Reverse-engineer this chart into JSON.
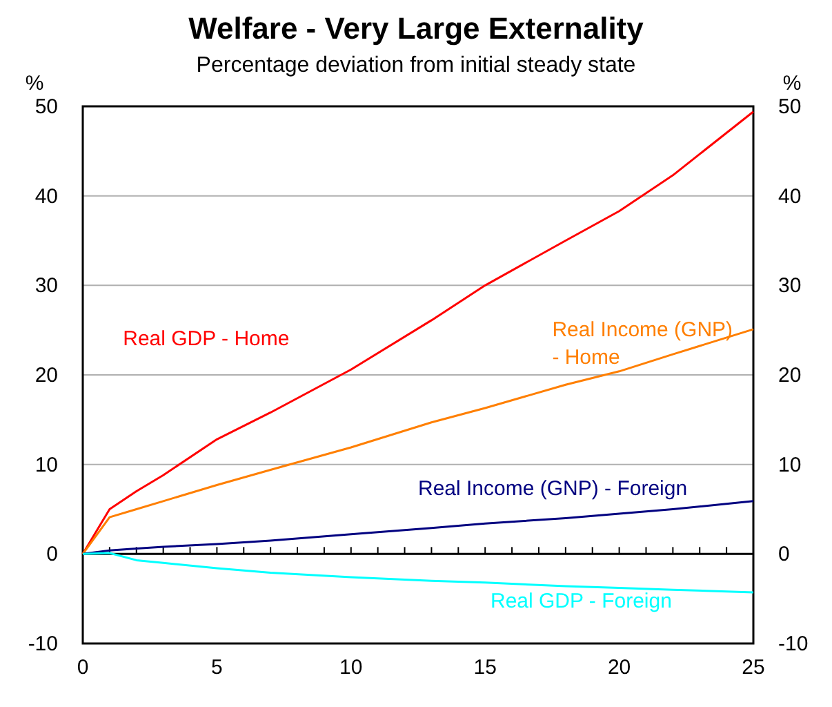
{
  "chart_data": {
    "type": "line",
    "title": "Welfare - Very Large Externality",
    "subtitle": "Percentage deviation from initial steady state",
    "ylabel": "%",
    "y2label": "%",
    "x": [
      0,
      1,
      2,
      3,
      5,
      7,
      10,
      13,
      15,
      18,
      20,
      22,
      25
    ],
    "xlim": [
      0,
      25
    ],
    "xticks": [
      0,
      {
        "value": 1,
        "label": null
      },
      {
        "value": 2,
        "label": null
      },
      {
        "value": 3,
        "label": null
      },
      {
        "value": 4,
        "label": null
      },
      5,
      {
        "value": 6,
        "label": null
      },
      {
        "value": 7,
        "label": null
      },
      {
        "value": 8,
        "label": null
      },
      {
        "value": 9,
        "label": null
      },
      10,
      {
        "value": 11,
        "label": null
      },
      {
        "value": 12,
        "label": null
      },
      {
        "value": 13,
        "label": null
      },
      {
        "value": 14,
        "label": null
      },
      15,
      {
        "value": 16,
        "label": null
      },
      {
        "value": 17,
        "label": null
      },
      {
        "value": 18,
        "label": null
      },
      {
        "value": 19,
        "label": null
      },
      20,
      {
        "value": 21,
        "label": null
      },
      {
        "value": 22,
        "label": null
      },
      {
        "value": 23,
        "label": null
      },
      {
        "value": 24,
        "label": null
      },
      25
    ],
    "ylim": [
      -10,
      50
    ],
    "yticks": [
      -10,
      0,
      10,
      20,
      30,
      40,
      50
    ],
    "y2lim": [
      -10,
      50
    ],
    "y2ticks": [
      -10,
      0,
      10,
      20,
      30,
      40,
      50
    ],
    "grid": "y",
    "legend": false,
    "marker": "none",
    "line_style": "solid",
    "series": [
      {
        "name": "Real GDP - Home",
        "color": "#ff0000",
        "values": [
          0,
          5.0,
          7.0,
          8.8,
          12.8,
          15.8,
          20.6,
          26.1,
          30.0,
          35.0,
          38.3,
          42.3,
          49.4
        ]
      },
      {
        "name": "Real Income (GNP) - Home",
        "color": "#ff7f00",
        "values": [
          0,
          4.1,
          5.0,
          5.9,
          7.7,
          9.4,
          11.9,
          14.7,
          16.3,
          18.9,
          20.4,
          22.3,
          25.1
        ]
      },
      {
        "name": "Real Income (GNP) - Foreign",
        "color": "#000080",
        "values": [
          0,
          0.4,
          0.6,
          0.8,
          1.1,
          1.5,
          2.2,
          2.9,
          3.4,
          4.0,
          4.5,
          5.0,
          5.9
        ]
      },
      {
        "name": "Real GDP - Foreign",
        "color": "#00ffff",
        "values": [
          0,
          0.1,
          -0.7,
          -1.0,
          -1.6,
          -2.1,
          -2.6,
          -3.0,
          -3.2,
          -3.6,
          -3.8,
          -4.0,
          -4.3
        ]
      }
    ]
  }
}
